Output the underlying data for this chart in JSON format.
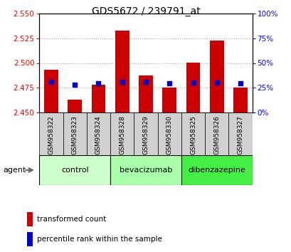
{
  "title": "GDS5672 / 239791_at",
  "samples": [
    "GSM958322",
    "GSM958323",
    "GSM958324",
    "GSM958328",
    "GSM958329",
    "GSM958330",
    "GSM958325",
    "GSM958326",
    "GSM958327"
  ],
  "transformed_count": [
    2.493,
    2.463,
    2.478,
    2.533,
    2.487,
    2.475,
    2.5,
    2.523,
    2.475
  ],
  "percentile_rank": [
    31,
    28,
    29,
    31,
    31,
    29,
    30,
    30,
    29
  ],
  "ylim_left": [
    2.45,
    2.55
  ],
  "ylim_right": [
    0,
    100
  ],
  "yticks_left": [
    2.45,
    2.475,
    2.5,
    2.525,
    2.55
  ],
  "yticks_right": [
    0,
    25,
    50,
    75,
    100
  ],
  "bar_color": "#cc0000",
  "dot_color": "#0000cc",
  "bar_base": 2.45,
  "groups": [
    {
      "label": "control",
      "indices": [
        0,
        1,
        2
      ],
      "color": "#ccffcc"
    },
    {
      "label": "bevacizumab",
      "indices": [
        3,
        4,
        5
      ],
      "color": "#aaffaa"
    },
    {
      "label": "dibenzazepine",
      "indices": [
        6,
        7,
        8
      ],
      "color": "#44ee44"
    }
  ],
  "agent_label": "agent",
  "legend_items": [
    {
      "color": "#cc0000",
      "label": "transformed count"
    },
    {
      "color": "#0000cc",
      "label": "percentile rank within the sample"
    }
  ],
  "grid_color": "#aaaaaa",
  "title_fontsize": 10,
  "tick_fontsize": 7.5,
  "sample_fontsize": 6.5,
  "group_fontsize": 8,
  "legend_fontsize": 7.5
}
